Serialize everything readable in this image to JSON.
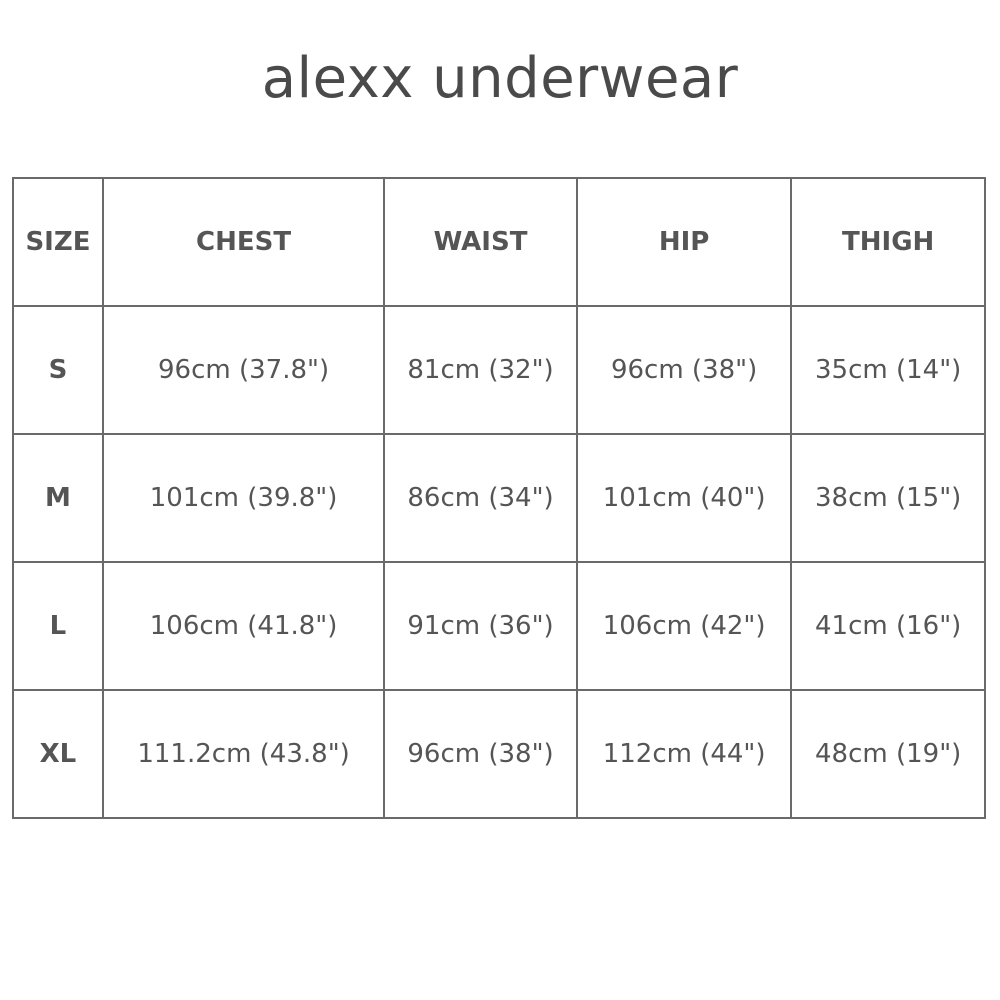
{
  "title": "alexx underwear",
  "table": {
    "headers": [
      "SIZE",
      "CHEST",
      "WAIST",
      "HIP",
      "THIGH"
    ],
    "rows": [
      [
        "S",
        "96cm (37.8\")",
        "81cm (32\")",
        "96cm (38\")",
        "35cm (14\")"
      ],
      [
        "M",
        "101cm (39.8\")",
        "86cm (34\")",
        "101cm (40\")",
        "38cm (15\")"
      ],
      [
        "L",
        "106cm (41.8\")",
        "91cm (36\")",
        "106cm (42\")",
        "41cm (16\")"
      ],
      [
        "XL",
        "111.2cm (43.8\")",
        "96cm (38\")",
        "112cm (44\")",
        "48cm (19\")"
      ]
    ]
  }
}
